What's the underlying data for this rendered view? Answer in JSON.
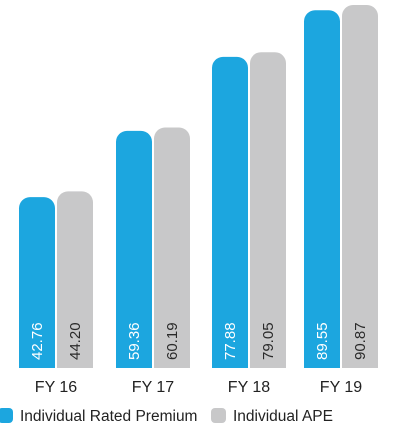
{
  "chart_data": {
    "type": "bar",
    "categories": [
      "FY 16",
      "FY 17",
      "FY 18",
      "FY 19"
    ],
    "series": [
      {
        "name": "Individual Rated Premium",
        "values": [
          42.76,
          59.36,
          77.88,
          89.55
        ],
        "labels": [
          "42.76",
          "59.36",
          "77.88",
          "89.55"
        ],
        "color": "#1ca6df"
      },
      {
        "name": "Individual APE",
        "values": [
          44.2,
          60.19,
          79.05,
          90.87
        ],
        "labels": [
          "44.20",
          "60.19",
          "79.05",
          "90.87"
        ],
        "color": "#c8c8c9"
      }
    ],
    "label_colors": [
      "#ffffff",
      "#2a2a2a"
    ],
    "legend_position": "bottom-left",
    "grid": false
  }
}
